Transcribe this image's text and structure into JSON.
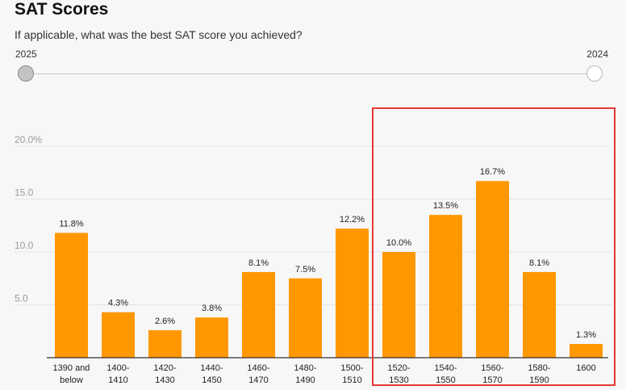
{
  "header": {
    "title": "SAT Scores",
    "subtitle": "If applicable, what was the best SAT score you achieved?"
  },
  "slider": {
    "start_label": "2025",
    "end_label": "2024"
  },
  "colors": {
    "bar": "#ff9800",
    "highlight": "#e53935",
    "grid": "#e4e4e4",
    "axis": "#333333"
  },
  "chart_data": {
    "type": "bar",
    "title": "SAT Scores",
    "xlabel": "",
    "ylabel": "",
    "ylim": [
      0,
      20
    ],
    "yticks": [
      {
        "value": 5,
        "label": "5.0"
      },
      {
        "value": 10,
        "label": "10.0"
      },
      {
        "value": 15,
        "label": "15.0"
      },
      {
        "value": 20,
        "label": "20.0%"
      }
    ],
    "categories": [
      [
        "1390 and",
        "below"
      ],
      [
        "1400-",
        "1410"
      ],
      [
        "1420-",
        "1430"
      ],
      [
        "1440-",
        "1450"
      ],
      [
        "1460-",
        "1470"
      ],
      [
        "1480-",
        "1490"
      ],
      [
        "1500-",
        "1510"
      ],
      [
        "1520-",
        "1530"
      ],
      [
        "1540-",
        "1550"
      ],
      [
        "1560-",
        "1570"
      ],
      [
        "1580-",
        "1590"
      ],
      [
        "1600"
      ]
    ],
    "values": [
      11.8,
      4.3,
      2.6,
      3.8,
      8.1,
      7.5,
      12.2,
      10.0,
      13.5,
      16.7,
      8.1,
      1.3
    ],
    "value_labels": [
      "11.8%",
      "4.3%",
      "2.6%",
      "3.8%",
      "8.1%",
      "7.5%",
      "12.2%",
      "10.0%",
      "13.5%",
      "16.7%",
      "8.1%",
      "1.3%"
    ]
  }
}
